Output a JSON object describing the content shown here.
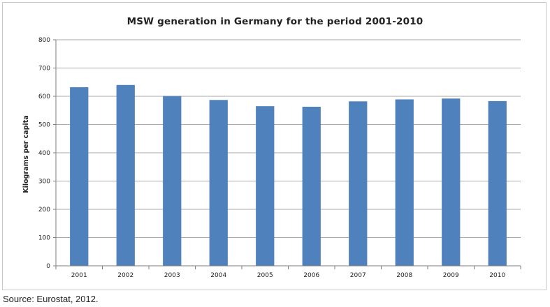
{
  "chart_data": {
    "type": "bar",
    "title": "MSW generation in Germany for the period 2001-2010",
    "xlabel": "",
    "ylabel": "Kilograms per capita",
    "categories": [
      "2001",
      "2002",
      "2003",
      "2004",
      "2005",
      "2006",
      "2007",
      "2008",
      "2009",
      "2010"
    ],
    "values": [
      632,
      640,
      601,
      587,
      565,
      563,
      582,
      589,
      592,
      583
    ],
    "ylim": [
      0,
      800
    ],
    "yticks": [
      0,
      100,
      200,
      300,
      400,
      500,
      600,
      700,
      800
    ],
    "grid": true,
    "legend": "none",
    "bar_color": "#4f81bd",
    "grid_color": "#8c8c8c"
  },
  "source": "Source: Eurostat, 2012."
}
